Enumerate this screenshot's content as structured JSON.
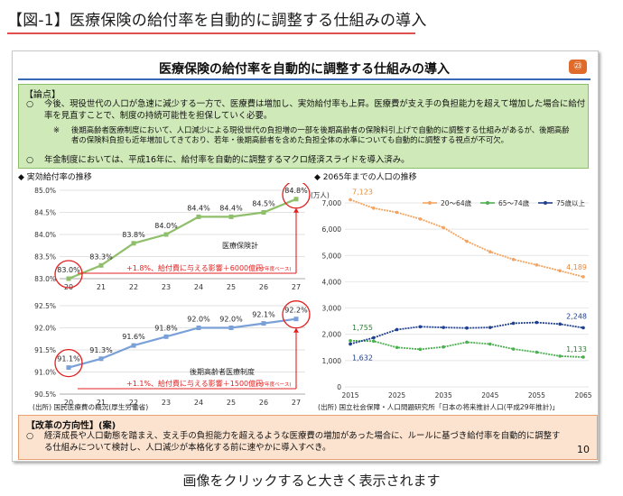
{
  "figure_title": "【図-1】医療保険の給付率を自動的に調整する仕組みの導入",
  "slide": {
    "title": "医療保険の給付率を自動的に調整する仕組みの導入",
    "badge": "㉓",
    "points": {
      "header": "【論点】",
      "p1_mark": "○",
      "p1_text": "今後、現役世代の人口が急速に減少する一方で、医療費は増加し、実効給付率も上昇。医療費が支え手の負担能力を超えて増加した場合に給付率を見直すことで、制度の持続可能性を担保していく必要。",
      "sub_mark": "※",
      "sub_text": "後期高齢者医療制度において、人口減少による現役世代の負担増の一部を後期高齢者の保険料引上げで自動的に調整する仕組みがあるが、後期高齢者の保険料負担も近年増加してきており、若年・後期高齢者を含めた負担全体の水準についても自動的に調整する視点が不可欠。",
      "p2_mark": "○",
      "p2_text": "年金制度においては、平成16年に、給付率を自動的に調整するマクロ経済スライドを導入済み。"
    },
    "left_chart_title": "◆ 実効給付率の推移",
    "right_chart_title": "◆ 2065年までの人口の推移",
    "left_source": "(出所) 国民医療費の概況(厚生労働省)",
    "right_source": "(出所) 国立社会保障・人口問題研究所「日本の将来推計人口(平成29年推計)」",
    "policy": {
      "header": "【改革の方向性】(案)",
      "mark": "○",
      "text": "経済成長や人口動態を踏まえ、支え手の負担能力を超えるような医療費の増加があった場合に、ルールに基づき給付率を自動的に調整する仕組みについて検討し、人口減少が本格化する前に速やかに導入すべき。"
    },
    "page_number": "10"
  },
  "caption": "画像をクリックすると大きく表示されます",
  "chart_data": [
    {
      "type": "line",
      "title": "",
      "categories": [
        "20",
        "21",
        "22",
        "23",
        "24",
        "25",
        "26",
        "27"
      ],
      "ylim": [
        83.0,
        85.0
      ],
      "yticks": [
        "83.0%",
        "83.5%",
        "84.0%",
        "84.5%",
        "85.0%"
      ],
      "series": [
        {
          "name": "医療保険計",
          "values": [
            83.0,
            83.3,
            83.8,
            84.0,
            84.4,
            84.4,
            84.5,
            84.8
          ],
          "labels": [
            "83.0%",
            "83.3%",
            "83.8%",
            "84.0%",
            "84.4%",
            "84.4%",
            "84.5%",
            "84.8%"
          ],
          "color": "#8fbf6a"
        }
      ],
      "annotation": "+1.8%、給付費に与える影響＋6000億円",
      "annotation_note": "(27年度ベース)",
      "annotation_color": "#e02020"
    },
    {
      "type": "line",
      "title": "",
      "categories": [
        "20",
        "21",
        "22",
        "23",
        "24",
        "25",
        "26",
        "27"
      ],
      "ylim": [
        90.5,
        92.5
      ],
      "yticks": [
        "90.5%",
        "91.0%",
        "91.5%",
        "92.0%",
        "92.5%"
      ],
      "series": [
        {
          "name": "後期高齢者医療制度",
          "values": [
            91.1,
            91.3,
            91.6,
            91.8,
            92.0,
            92.0,
            92.1,
            92.2
          ],
          "labels": [
            "91.1%",
            "91.3%",
            "91.6%",
            "91.8%",
            "92.0%",
            "92.0%",
            "92.1%",
            "92.2%"
          ],
          "color": "#7aa0d8"
        }
      ],
      "annotation": "+1.1%、給付費に与える影響＋1500億円",
      "annotation_note": "(27年度ベース)",
      "annotation_color": "#e02020"
    },
    {
      "type": "line",
      "title": "",
      "ylabel": "(万人)",
      "xlim": [
        2015,
        2065
      ],
      "ylim": [
        0,
        7000
      ],
      "xticks": [
        "2015",
        "2025",
        "2035",
        "2045",
        "2055",
        "2065"
      ],
      "yticks": [
        "0",
        "1,000",
        "2,000",
        "3,000",
        "4,000",
        "5,000",
        "6,000",
        "7,000"
      ],
      "series": [
        {
          "name": "20～64歳",
          "color": "#f4a460",
          "start_label": "7,123",
          "end_label": "4,189",
          "x": [
            2015,
            2020,
            2025,
            2030,
            2035,
            2040,
            2045,
            2050,
            2055,
            2060,
            2065
          ],
          "values": [
            7123,
            6800,
            6640,
            6390,
            6060,
            5540,
            5140,
            4850,
            4640,
            4420,
            4189
          ]
        },
        {
          "name": "65～74歳",
          "color": "#4caf50",
          "start_label": "1,755",
          "end_label": "1,133",
          "x": [
            2015,
            2020,
            2025,
            2030,
            2035,
            2040,
            2045,
            2050,
            2055,
            2060,
            2065
          ],
          "values": [
            1755,
            1740,
            1500,
            1430,
            1520,
            1700,
            1630,
            1440,
            1320,
            1170,
            1133
          ]
        },
        {
          "name": "75歳以上",
          "color": "#1f3f8f",
          "start_label": "1,632",
          "end_label": "2,248",
          "x": [
            2015,
            2020,
            2025,
            2030,
            2035,
            2040,
            2045,
            2050,
            2055,
            2060,
            2065
          ],
          "values": [
            1632,
            1870,
            2180,
            2290,
            2260,
            2240,
            2260,
            2420,
            2450,
            2390,
            2248
          ]
        }
      ]
    }
  ]
}
